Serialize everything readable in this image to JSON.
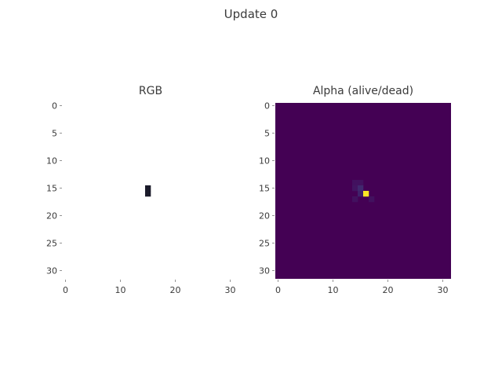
{
  "figure": {
    "title": "Update 0"
  },
  "chart_data": [
    {
      "type": "heatmap",
      "title": "RGB",
      "grid_size": 32,
      "grid": false,
      "x_ticks": [
        0,
        10,
        20,
        30
      ],
      "y_ticks": [
        0,
        5,
        10,
        15,
        20,
        25,
        30
      ],
      "xlim": [
        -0.5,
        31.5
      ],
      "ylim": [
        31.5,
        -0.5
      ],
      "background": "#ffffff",
      "cells": [
        {
          "row": 15,
          "col": 15,
          "color": "#1a1a2a"
        },
        {
          "row": 16,
          "col": 15,
          "color": "#1a1a2a"
        }
      ]
    },
    {
      "type": "heatmap",
      "title": "Alpha (alive/dead)",
      "grid_size": 32,
      "grid": false,
      "x_ticks": [
        0,
        10,
        20,
        30
      ],
      "y_ticks": [
        0,
        5,
        10,
        15,
        20,
        25,
        30
      ],
      "xlim": [
        -0.5,
        31.5
      ],
      "ylim": [
        31.5,
        -0.5
      ],
      "colormap": "viridis",
      "background_value": 0,
      "cells": [
        {
          "row": 14,
          "col": 14,
          "value": 0.05
        },
        {
          "row": 14,
          "col": 15,
          "value": 0.05
        },
        {
          "row": 15,
          "col": 14,
          "value": 0.06
        },
        {
          "row": 15,
          "col": 15,
          "value": 0.12
        },
        {
          "row": 16,
          "col": 15,
          "value": 0.1
        },
        {
          "row": 16,
          "col": 16,
          "value": 1.0
        },
        {
          "row": 17,
          "col": 14,
          "value": 0.05
        },
        {
          "row": 17,
          "col": 17,
          "value": 0.05
        }
      ]
    }
  ]
}
